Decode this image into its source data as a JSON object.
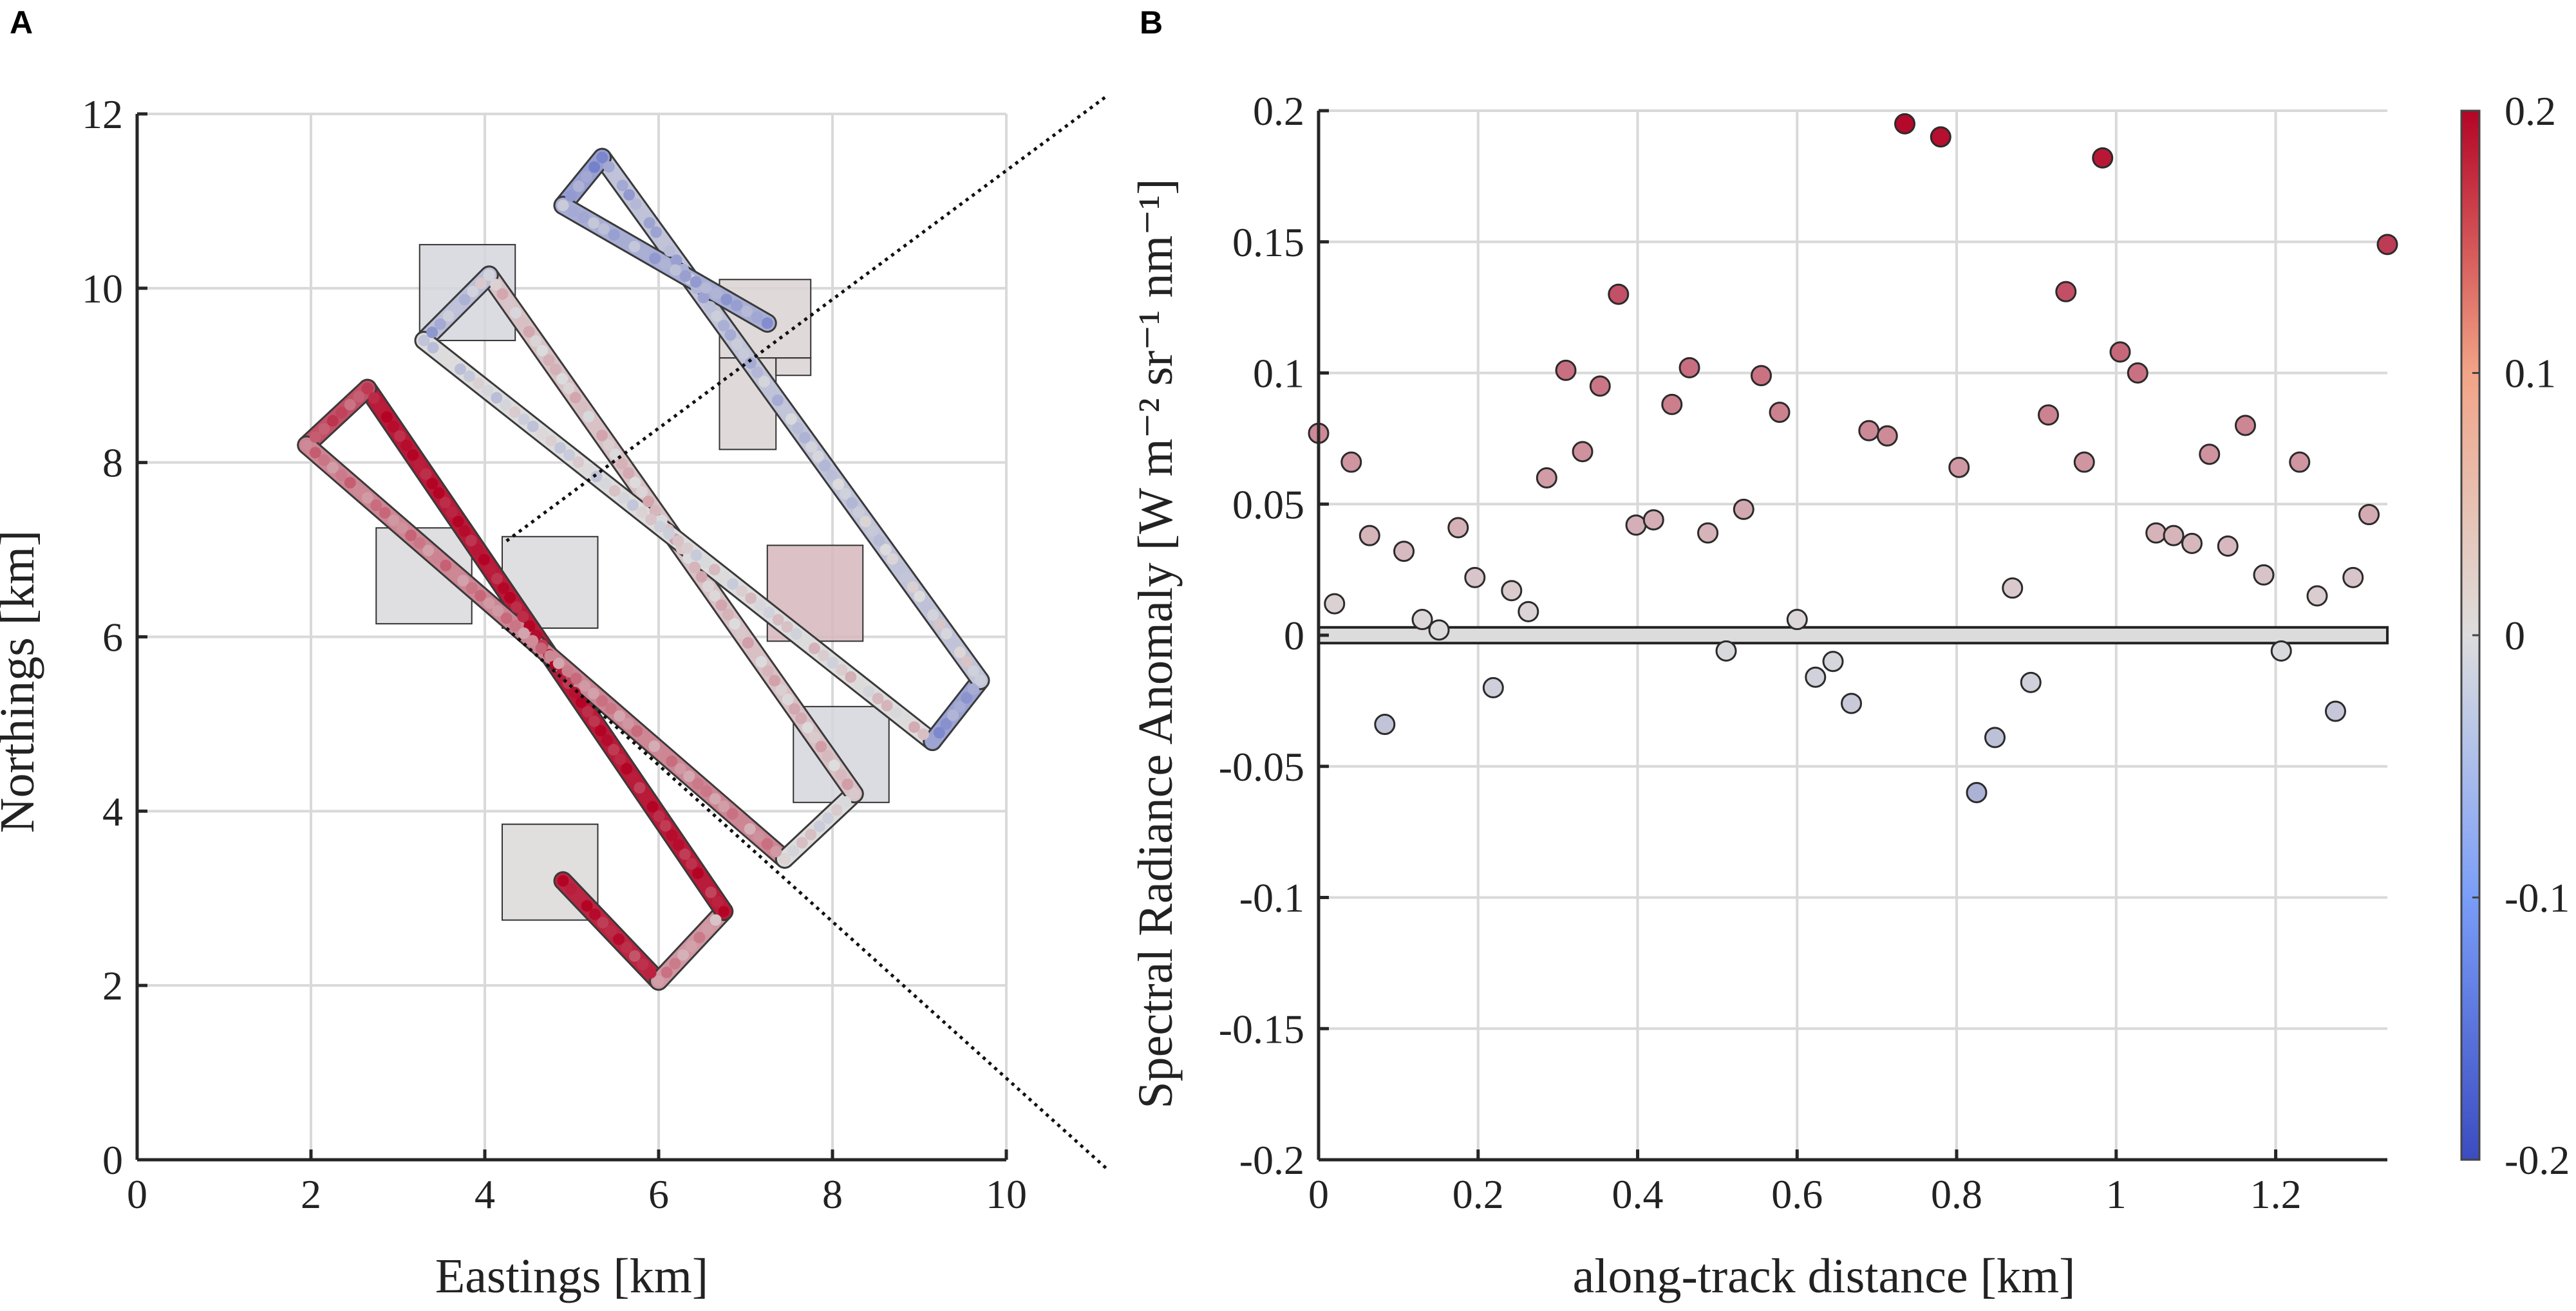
{
  "panel_labels": {
    "a": "A",
    "b": "B"
  },
  "colormap": {
    "low": "#3b4cc0",
    "mid": "#dddddd",
    "high": "#b40426",
    "outline": "#2b2b2b"
  },
  "chart_data": [
    {
      "id": "A",
      "type": "scatter",
      "title": "",
      "xlabel": "Eastings [km]",
      "ylabel": "Northings [km]",
      "xlim": [
        0,
        10
      ],
      "ylim": [
        0,
        12
      ],
      "xticks": [
        0,
        2,
        4,
        6,
        8,
        10
      ],
      "yticks": [
        0,
        2,
        4,
        6,
        8,
        10,
        12
      ],
      "grid": true,
      "legs": [
        {
          "x1": 4.9,
          "y1": 3.2,
          "x2": 6.0,
          "y2": 2.05,
          "v1": 0.2,
          "v2": 0.14
        },
        {
          "x1": 6.0,
          "y1": 2.05,
          "x2": 6.75,
          "y2": 2.85,
          "v1": 0.08,
          "v2": 0.05
        },
        {
          "x1": 6.75,
          "y1": 2.85,
          "x2": 2.65,
          "y2": 8.85,
          "v1": 0.17,
          "v2": 0.19
        },
        {
          "x1": 2.65,
          "y1": 8.85,
          "x2": 1.95,
          "y2": 8.2,
          "v1": 0.12,
          "v2": 0.14
        },
        {
          "x1": 1.95,
          "y1": 8.2,
          "x2": 7.45,
          "y2": 3.45,
          "v1": 0.09,
          "v2": 0.07
        },
        {
          "x1": 7.45,
          "y1": 3.45,
          "x2": 8.25,
          "y2": 4.2,
          "v1": 0.02,
          "v2": -0.02
        },
        {
          "x1": 8.25,
          "y1": 4.2,
          "x2": 4.05,
          "y2": 10.15,
          "v1": 0.03,
          "v2": 0.02
        },
        {
          "x1": 4.05,
          "y1": 10.15,
          "x2": 3.3,
          "y2": 9.4,
          "v1": 0.0,
          "v2": -0.08
        },
        {
          "x1": 3.3,
          "y1": 9.4,
          "x2": 9.15,
          "y2": 4.8,
          "v1": -0.02,
          "v2": 0.02
        },
        {
          "x1": 9.15,
          "y1": 4.8,
          "x2": 9.7,
          "y2": 5.5,
          "v1": -0.1,
          "v2": -0.06
        },
        {
          "x1": 9.7,
          "y1": 5.5,
          "x2": 5.35,
          "y2": 11.5,
          "v1": 0.0,
          "v2": -0.07
        },
        {
          "x1": 5.35,
          "y1": 11.5,
          "x2": 4.9,
          "y2": 10.95,
          "v1": -0.11,
          "v2": -0.06
        },
        {
          "x1": 4.9,
          "y1": 10.95,
          "x2": 7.25,
          "y2": 9.6,
          "v1": -0.05,
          "v2": -0.08
        }
      ],
      "squares": [
        {
          "x0": 3.25,
          "y0": 9.4,
          "x1": 4.35,
          "y1": 10.5,
          "v": -0.01
        },
        {
          "x0": 6.7,
          "y0": 9.2,
          "x1": 7.75,
          "y1": 10.1,
          "v": 0.01
        },
        {
          "x0": 6.7,
          "y0": 8.15,
          "x1": 7.35,
          "y1": 9.2,
          "v": 0.01
        },
        {
          "x0": 7.35,
          "y0": 9.0,
          "x1": 7.75,
          "y1": 9.2,
          "v": 0.01
        },
        {
          "x0": 2.75,
          "y0": 6.15,
          "x1": 3.85,
          "y1": 7.25,
          "v": -0.005
        },
        {
          "x0": 4.2,
          "y0": 6.1,
          "x1": 5.3,
          "y1": 7.15,
          "v": -0.005
        },
        {
          "x0": 7.25,
          "y0": 5.95,
          "x1": 8.35,
          "y1": 7.05,
          "v": 0.035
        },
        {
          "x0": 7.55,
          "y0": 4.1,
          "x1": 8.65,
          "y1": 5.2,
          "v": -0.01
        },
        {
          "x0": 4.2,
          "y0": 2.75,
          "x1": 5.3,
          "y1": 3.85,
          "v": 0.005
        }
      ],
      "zoom_lines": [
        {
          "from": [
            4.25,
            7.1
          ],
          "to_panel": "B",
          "to": [
            0,
            0.2
          ]
        },
        {
          "from": [
            4.25,
            6.1
          ],
          "to_panel": "B",
          "to": [
            0,
            -0.2
          ]
        }
      ]
    },
    {
      "id": "B",
      "type": "scatter",
      "title": "",
      "xlabel": "along-track distance [km]",
      "ylabel": "Spectral Radiance Anomaly [W  m⁻² sr⁻¹ nm⁻¹]",
      "xlim": [
        0,
        1.34
      ],
      "ylim": [
        -0.2,
        0.2
      ],
      "xticks": [
        0,
        0.2,
        0.4,
        0.6,
        0.8,
        1,
        1.2
      ],
      "xtick_labels": [
        "0",
        "0.2",
        "0.4",
        "0.6",
        "0.8",
        "1",
        "1.2"
      ],
      "yticks": [
        -0.2,
        -0.15,
        -0.1,
        -0.05,
        0,
        0.05,
        0.1,
        0.15,
        0.2
      ],
      "ytick_labels": [
        "-0.2",
        "-0.15",
        "-0.1",
        "-0.05",
        "0",
        "0.05",
        "0.1",
        "0.15",
        "0.2"
      ],
      "grid": true,
      "zero_band": [
        -0.003,
        0.003
      ],
      "colorbar": {
        "range": [
          -0.2,
          0.2
        ],
        "ticks": [
          0.2,
          0.1,
          0,
          -0.1,
          -0.2
        ],
        "tick_labels": [
          "0.2",
          "0.1",
          "0",
          "-0.1",
          "-0.2"
        ],
        "location": "right"
      },
      "points": [
        {
          "x": 0.0,
          "y": 0.077
        },
        {
          "x": 0.02,
          "y": 0.012
        },
        {
          "x": 0.041,
          "y": 0.066
        },
        {
          "x": 0.064,
          "y": 0.038
        },
        {
          "x": 0.083,
          "y": -0.034
        },
        {
          "x": 0.107,
          "y": 0.032
        },
        {
          "x": 0.13,
          "y": 0.006
        },
        {
          "x": 0.151,
          "y": 0.002
        },
        {
          "x": 0.175,
          "y": 0.041
        },
        {
          "x": 0.196,
          "y": 0.022
        },
        {
          "x": 0.219,
          "y": -0.02
        },
        {
          "x": 0.242,
          "y": 0.017
        },
        {
          "x": 0.263,
          "y": 0.009
        },
        {
          "x": 0.286,
          "y": 0.06
        },
        {
          "x": 0.31,
          "y": 0.101
        },
        {
          "x": 0.331,
          "y": 0.07
        },
        {
          "x": 0.353,
          "y": 0.095
        },
        {
          "x": 0.376,
          "y": 0.13
        },
        {
          "x": 0.398,
          "y": 0.042
        },
        {
          "x": 0.42,
          "y": 0.044
        },
        {
          "x": 0.443,
          "y": 0.088
        },
        {
          "x": 0.465,
          "y": 0.102
        },
        {
          "x": 0.488,
          "y": 0.039
        },
        {
          "x": 0.511,
          "y": -0.006
        },
        {
          "x": 0.533,
          "y": 0.048
        },
        {
          "x": 0.555,
          "y": 0.099
        },
        {
          "x": 0.578,
          "y": 0.085
        },
        {
          "x": 0.6,
          "y": 0.006
        },
        {
          "x": 0.623,
          "y": -0.016
        },
        {
          "x": 0.645,
          "y": -0.01
        },
        {
          "x": 0.668,
          "y": -0.026
        },
        {
          "x": 0.69,
          "y": 0.078
        },
        {
          "x": 0.713,
          "y": 0.076
        },
        {
          "x": 0.735,
          "y": 0.195
        },
        {
          "x": 0.78,
          "y": 0.19
        },
        {
          "x": 0.803,
          "y": 0.064
        },
        {
          "x": 0.825,
          "y": -0.06
        },
        {
          "x": 0.848,
          "y": -0.039
        },
        {
          "x": 0.87,
          "y": 0.018
        },
        {
          "x": 0.893,
          "y": -0.018
        },
        {
          "x": 0.915,
          "y": 0.084
        },
        {
          "x": 0.937,
          "y": 0.131
        },
        {
          "x": 0.96,
          "y": 0.066
        },
        {
          "x": 0.983,
          "y": 0.182
        },
        {
          "x": 1.005,
          "y": 0.108
        },
        {
          "x": 1.027,
          "y": 0.1
        },
        {
          "x": 1.05,
          "y": 0.039
        },
        {
          "x": 1.072,
          "y": 0.038
        },
        {
          "x": 1.095,
          "y": 0.035
        },
        {
          "x": 1.117,
          "y": 0.069
        },
        {
          "x": 1.14,
          "y": 0.034
        },
        {
          "x": 1.162,
          "y": 0.08
        },
        {
          "x": 1.185,
          "y": 0.023
        },
        {
          "x": 1.207,
          "y": -0.006
        },
        {
          "x": 1.23,
          "y": 0.066
        },
        {
          "x": 1.252,
          "y": 0.015
        },
        {
          "x": 1.275,
          "y": -0.029
        },
        {
          "x": 1.297,
          "y": 0.022
        },
        {
          "x": 1.317,
          "y": 0.046
        },
        {
          "x": 1.34,
          "y": 0.149
        }
      ]
    }
  ]
}
